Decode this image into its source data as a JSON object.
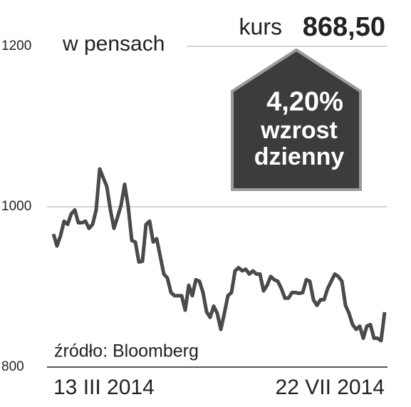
{
  "chart_data": {
    "type": "line",
    "y_label": "w pensach",
    "price_label": "kurs",
    "price": "868,50",
    "badge": {
      "change": "4,20%",
      "line1": "wzrost",
      "line2": "dzienny"
    },
    "source": "źródło: Bloomberg",
    "categories": [
      "13 III 2014",
      null,
      null,
      null,
      null,
      null,
      null,
      null,
      null,
      null,
      null,
      null,
      null,
      null,
      null,
      null,
      null,
      null,
      null,
      null,
      null,
      null,
      null,
      null,
      null,
      null,
      null,
      null,
      null,
      null,
      null,
      null,
      null,
      null,
      null,
      null,
      null,
      null,
      null,
      null,
      null,
      null,
      null,
      null,
      null,
      null,
      null,
      null,
      null,
      null,
      null,
      null,
      null,
      null,
      null,
      null,
      null,
      null,
      null,
      null,
      null,
      null,
      null,
      null,
      null,
      null,
      null,
      null,
      null,
      null,
      null,
      null,
      null,
      null,
      null,
      null,
      null,
      null,
      null,
      null,
      null,
      null,
      null,
      null,
      null,
      null,
      null,
      null,
      null,
      null,
      null,
      null,
      null,
      "22 VII 2014"
    ],
    "values": [
      966,
      951,
      964,
      982,
      978,
      991,
      996,
      980,
      980,
      982,
      973,
      978,
      996,
      1047,
      1036,
      1025,
      996,
      973,
      987,
      1002,
      1028,
      1000,
      958,
      956,
      931,
      932,
      978,
      982,
      956,
      960,
      938,
      916,
      911,
      893,
      889,
      889,
      889,
      871,
      902,
      889,
      909,
      907,
      893,
      869,
      862,
      876,
      867,
      847,
      867,
      889,
      893,
      920,
      924,
      920,
      922,
      916,
      920,
      916,
      916,
      895,
      902,
      913,
      909,
      907,
      898,
      886,
      886,
      893,
      893,
      892,
      893,
      909,
      907,
      884,
      877,
      884,
      884,
      898,
      907,
      916,
      913,
      907,
      877,
      867,
      853,
      847,
      851,
      836,
      851,
      853,
      836,
      836,
      833,
      868.5
    ],
    "color": "#4a4a4a",
    "ylim": [
      800,
      1200
    ],
    "yticks": [
      800,
      1000,
      1200
    ],
    "grid": true
  }
}
